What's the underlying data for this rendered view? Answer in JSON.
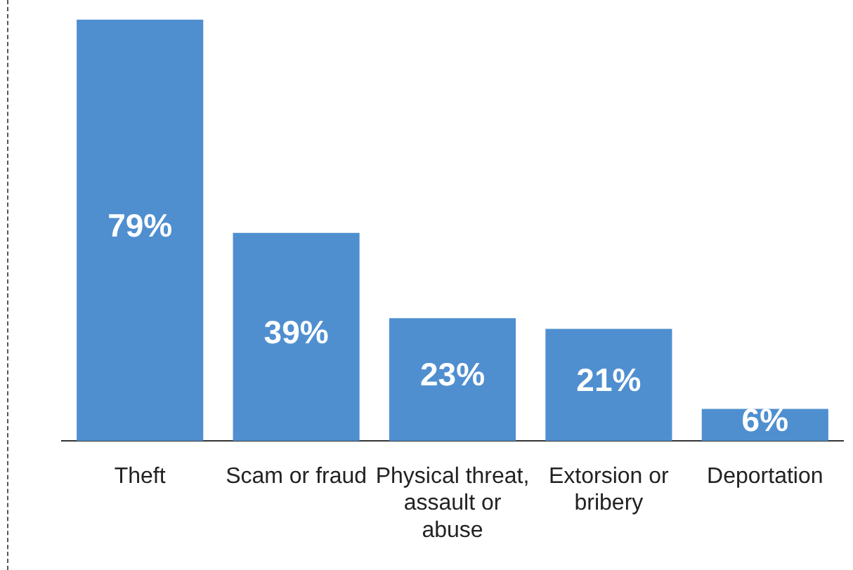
{
  "chart_data": {
    "type": "bar",
    "categories": [
      "Theft",
      "Scam or fraud",
      "Physical threat, assault or abuse",
      "Extorsion or bribery",
      "Deportation"
    ],
    "values": [
      79,
      39,
      23,
      21,
      6
    ],
    "value_labels": [
      "79%",
      "39%",
      "23%",
      "21%",
      "6%"
    ],
    "color": "#4f8fd0",
    "grid": false,
    "legend": false
  }
}
